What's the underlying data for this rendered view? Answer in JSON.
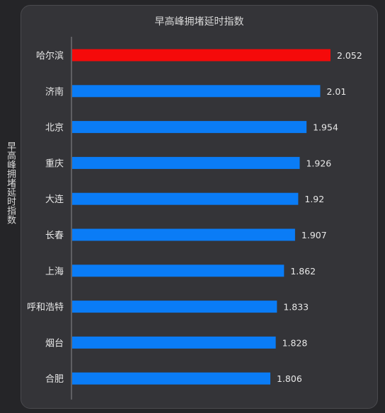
{
  "chart_data": {
    "type": "bar",
    "orientation": "horizontal",
    "title": "早高峰拥堵延时指数",
    "ylabel": "早高峰拥堵延时指数",
    "xlabel": "",
    "categories": [
      "哈尔滨",
      "济南",
      "北京",
      "重庆",
      "大连",
      "长春",
      "上海",
      "呼和浩特",
      "烟台",
      "合肥"
    ],
    "values": [
      2.052,
      2.01,
      1.954,
      1.926,
      1.92,
      1.907,
      1.862,
      1.833,
      1.828,
      1.806
    ],
    "value_labels": [
      "2.052",
      "2.01",
      "1.954",
      "1.926",
      "1.92",
      "1.907",
      "1.862",
      "1.833",
      "1.828",
      "1.806"
    ],
    "highlight_index": 0,
    "colors": {
      "bar": "#0a7cf6",
      "highlight": "#f50a0a",
      "background": "#343438"
    },
    "grid": false,
    "legend": "none"
  }
}
